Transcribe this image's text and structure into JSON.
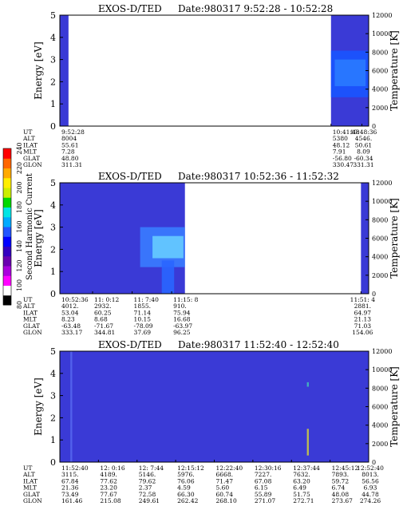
{
  "chart_data": {
    "type": "heatmap",
    "colorbar": {
      "label": "Second Harmonic Current",
      "ticks": [
        "240",
        "220",
        "200",
        "180",
        "160",
        "140",
        "120",
        "100",
        "80"
      ],
      "colors": [
        "#000000",
        "#ffffff",
        "#ff00ff",
        "#aa00dd",
        "#6a00b0",
        "#3300c0",
        "#0000ff",
        "#2255ff",
        "#00aaff",
        "#00e5e5",
        "#00d900",
        "#ccee00",
        "#ffee00",
        "#ffaa00",
        "#ff6600",
        "#ff0000"
      ]
    },
    "background_color": "#3a3ad6",
    "table_row_labels": [
      "UT",
      "ALT",
      "ILAT",
      "MLT",
      "GLAT",
      "GLON"
    ],
    "panels": [
      {
        "title_left": "EXOS-D/TED",
        "title_right": "Date:980317   9:52:28 - 10:52:28",
        "ylabel": "Energy [eV]",
        "y2label": "Temperature [K]",
        "ylim": [
          0,
          5
        ],
        "y_ticks": [
          "0",
          "1",
          "2",
          "3",
          "4",
          "5"
        ],
        "y2_ticks": [
          "0",
          "2000",
          "4000",
          "6000",
          "8000",
          "10000",
          "12000"
        ],
        "data_spans": [
          [
            0,
            0.028
          ],
          [
            0.878,
            1
          ]
        ],
        "features": [
          {
            "x0": 0.878,
            "x1": 1,
            "y0": 1.3,
            "y1": 3.4,
            "color": "#1a55ff"
          },
          {
            "x0": 0.89,
            "x1": 0.99,
            "y0": 1.8,
            "y1": 3.0,
            "color": "#2a7aff"
          }
        ],
        "table": [
          {
            "pos": 0,
            "values": [
              "9:52:28",
              "8004",
              "55.61",
              "7.28",
              "48.80",
              "311.31"
            ]
          },
          {
            "pos": 0.878,
            "values": [
              "10:41:48",
              "5380",
              "48.12",
              "7.91",
              "-56.80",
              "330.47"
            ]
          },
          {
            "pos": 0.978,
            "values": [
              "10:48:36",
              "4546.",
              "50.61",
              "8.09",
              "-60.34",
              "331.31"
            ]
          }
        ]
      },
      {
        "title_left": "EXOS-D/TED",
        "title_right": "Date:980317  10:52:36 - 11:52:32",
        "ylabel": "Energy [eV]",
        "y2label": "Temperature [K]",
        "ylim": [
          0,
          5
        ],
        "y_ticks": [
          "0",
          "1",
          "2",
          "3",
          "4",
          "5"
        ],
        "y2_ticks": [
          "0",
          "2000",
          "4000",
          "6000",
          "8000",
          "10000",
          "12000"
        ],
        "data_spans": [
          [
            0,
            0.405
          ],
          [
            0.975,
            1
          ]
        ],
        "features": [
          {
            "x0": 0.26,
            "x1": 0.405,
            "y0": 1.2,
            "y1": 3.0,
            "color": "#3a7cff"
          },
          {
            "x0": 0.3,
            "x1": 0.4,
            "y0": 1.6,
            "y1": 2.6,
            "color": "#66ccff"
          },
          {
            "x0": 0.33,
            "x1": 0.37,
            "y0": 0,
            "y1": 1.5,
            "color": "#2a66ff"
          }
        ],
        "table": [
          {
            "pos": 0,
            "values": [
              "10:52:36",
              "4012.",
              "53.04",
              "8.23",
              "-63.48",
              "333.17"
            ]
          },
          {
            "pos": 0.106,
            "values": [
              "11: 0:12",
              "2932.",
              "60.25",
              "8.68",
              "-71.67",
              "344.81"
            ]
          },
          {
            "pos": 0.234,
            "values": [
              "11: 7:40",
              "1855.",
              "71.14",
              "10.15",
              "-78.09",
              "37.69"
            ]
          },
          {
            "pos": 0.362,
            "values": [
              "11:15: 8",
              "910.",
              "75.94",
              "16.68",
              "-63.97",
              "96.25"
            ]
          },
          {
            "pos": 0.975,
            "values": [
              "11:51: 4",
              "2881.",
              "64.97",
              "21.13",
              "71.03",
              "154.06"
            ]
          }
        ]
      },
      {
        "title_left": "EXOS-D/TED",
        "title_right": "Date:980317  11:52:40 - 12:52:40",
        "ylabel": "Energy [eV]",
        "y2label": "Temperature [K]",
        "ylim": [
          0,
          5
        ],
        "y_ticks": [
          "0",
          "1",
          "2",
          "3",
          "4",
          "5"
        ],
        "y2_ticks": [
          "0",
          "2000",
          "4000",
          "6000",
          "8000",
          "10000",
          "12000"
        ],
        "data_spans": [
          [
            0,
            1
          ]
        ],
        "features": [
          {
            "x0": 0.034,
            "x1": 0.04,
            "y0": 0,
            "y1": 5,
            "color": "#5566ee"
          },
          {
            "x0": 0.8,
            "x1": 0.806,
            "y0": 0.3,
            "y1": 1.5,
            "color": "#cccc44"
          },
          {
            "x0": 0.8,
            "x1": 0.806,
            "y0": 3.4,
            "y1": 3.6,
            "color": "#44bbbb"
          }
        ],
        "table": [
          {
            "pos": 0,
            "values": [
              "11:52:40",
              "3115.",
              "67.84",
              "21.36",
              "73.49",
              "161.46"
            ]
          },
          {
            "pos": 0.125,
            "values": [
              "12: 0:16",
              "4189.",
              "77.62",
              "23.20",
              "77.67",
              "215.08"
            ]
          },
          {
            "pos": 0.25,
            "values": [
              "12: 7:44",
              "5146.",
              "79.62",
              "2.37",
              "72.58",
              "249.61"
            ]
          },
          {
            "pos": 0.375,
            "values": [
              "12:15:12",
              "5976.",
              "76.06",
              "4.59",
              "66.30",
              "262.42"
            ]
          },
          {
            "pos": 0.5,
            "values": [
              "12:22:40",
              "6668.",
              "71.47",
              "5.60",
              "60.74",
              "268.10"
            ]
          },
          {
            "pos": 0.625,
            "values": [
              "12:30:16",
              "7227.",
              "67.08",
              "6.15",
              "55.89",
              "271.07"
            ]
          },
          {
            "pos": 0.75,
            "values": [
              "12:37:44",
              "7632.",
              "63.20",
              "6.49",
              "51.75",
              "272.71"
            ]
          },
          {
            "pos": 0.875,
            "values": [
              "12:45:12",
              "7893.",
              "59.72",
              "6.74",
              "48.08",
              "273.67"
            ]
          },
          {
            "pos": 1,
            "values": [
              "12:52:40",
              "8013.",
              "56.56",
              "6.93",
              "44.78",
              "274.26"
            ]
          }
        ]
      }
    ]
  }
}
